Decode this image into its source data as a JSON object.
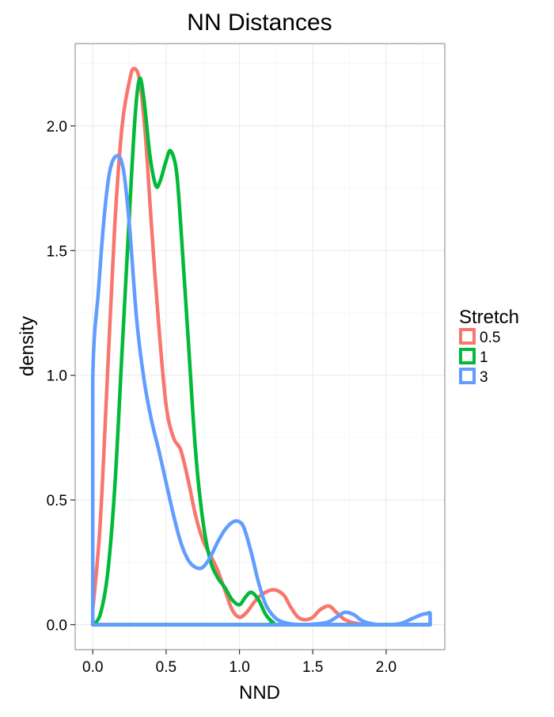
{
  "chart_data": {
    "type": "line",
    "title": "NN Distances",
    "xlabel": "NND",
    "ylabel": "density",
    "xlim": [
      -0.12,
      2.4
    ],
    "ylim": [
      -0.1,
      2.33
    ],
    "x_ticks": [
      0.0,
      0.5,
      1.0,
      1.5,
      2.0
    ],
    "x_tick_labels": [
      "0.0",
      "0.5",
      "1.0",
      "1.5",
      "2.0"
    ],
    "y_ticks": [
      0.0,
      0.5,
      1.0,
      1.5,
      2.0
    ],
    "y_tick_labels": [
      "0.0",
      "0.5",
      "1.0",
      "1.5",
      "2.0"
    ],
    "grid": true,
    "legend": {
      "title": "Stretch",
      "position": "right"
    },
    "series": [
      {
        "name": "0.5",
        "color": "#f8766d",
        "points": [
          [
            0.0,
            0.06
          ],
          [
            0.05,
            0.4
          ],
          [
            0.1,
            1.0
          ],
          [
            0.15,
            1.6
          ],
          [
            0.2,
            2.0
          ],
          [
            0.25,
            2.18
          ],
          [
            0.28,
            2.23
          ],
          [
            0.32,
            2.18
          ],
          [
            0.36,
            1.95
          ],
          [
            0.4,
            1.6
          ],
          [
            0.45,
            1.2
          ],
          [
            0.5,
            0.88
          ],
          [
            0.55,
            0.75
          ],
          [
            0.6,
            0.7
          ],
          [
            0.65,
            0.58
          ],
          [
            0.7,
            0.44
          ],
          [
            0.75,
            0.34
          ],
          [
            0.8,
            0.28
          ],
          [
            0.85,
            0.22
          ],
          [
            0.9,
            0.14
          ],
          [
            0.95,
            0.06
          ],
          [
            1.0,
            0.03
          ],
          [
            1.05,
            0.05
          ],
          [
            1.1,
            0.09
          ],
          [
            1.15,
            0.12
          ],
          [
            1.23,
            0.14
          ],
          [
            1.3,
            0.12
          ],
          [
            1.35,
            0.07
          ],
          [
            1.4,
            0.03
          ],
          [
            1.45,
            0.02
          ],
          [
            1.5,
            0.03
          ],
          [
            1.55,
            0.06
          ],
          [
            1.61,
            0.075
          ],
          [
            1.66,
            0.05
          ],
          [
            1.72,
            0.02
          ],
          [
            1.8,
            0.005
          ],
          [
            1.9,
            0.0
          ],
          [
            2.3,
            0.0
          ],
          [
            0.0,
            0.0
          ]
        ]
      },
      {
        "name": "1",
        "color": "#00ba38",
        "points": [
          [
            0.0,
            0.0
          ],
          [
            0.05,
            0.04
          ],
          [
            0.1,
            0.2
          ],
          [
            0.15,
            0.55
          ],
          [
            0.2,
            1.1
          ],
          [
            0.25,
            1.65
          ],
          [
            0.29,
            2.05
          ],
          [
            0.32,
            2.19
          ],
          [
            0.35,
            2.1
          ],
          [
            0.39,
            1.88
          ],
          [
            0.43,
            1.76
          ],
          [
            0.46,
            1.78
          ],
          [
            0.5,
            1.86
          ],
          [
            0.53,
            1.9
          ],
          [
            0.57,
            1.82
          ],
          [
            0.6,
            1.6
          ],
          [
            0.65,
            1.15
          ],
          [
            0.7,
            0.7
          ],
          [
            0.75,
            0.42
          ],
          [
            0.8,
            0.26
          ],
          [
            0.85,
            0.19
          ],
          [
            0.9,
            0.15
          ],
          [
            0.95,
            0.1
          ],
          [
            1.0,
            0.08
          ],
          [
            1.04,
            0.11
          ],
          [
            1.08,
            0.13
          ],
          [
            1.13,
            0.1
          ],
          [
            1.18,
            0.04
          ],
          [
            1.23,
            0.01
          ],
          [
            1.3,
            0.0
          ],
          [
            2.3,
            0.0
          ],
          [
            0.0,
            0.0
          ]
        ]
      },
      {
        "name": "3",
        "color": "#619cff",
        "points": [
          [
            0.0,
            0.0
          ],
          [
            0.0,
            0.98
          ],
          [
            0.04,
            1.35
          ],
          [
            0.08,
            1.65
          ],
          [
            0.12,
            1.83
          ],
          [
            0.17,
            1.88
          ],
          [
            0.21,
            1.82
          ],
          [
            0.25,
            1.6
          ],
          [
            0.3,
            1.22
          ],
          [
            0.35,
            0.98
          ],
          [
            0.4,
            0.82
          ],
          [
            0.45,
            0.7
          ],
          [
            0.5,
            0.57
          ],
          [
            0.55,
            0.44
          ],
          [
            0.6,
            0.33
          ],
          [
            0.65,
            0.26
          ],
          [
            0.7,
            0.23
          ],
          [
            0.75,
            0.23
          ],
          [
            0.8,
            0.27
          ],
          [
            0.85,
            0.33
          ],
          [
            0.9,
            0.38
          ],
          [
            0.95,
            0.41
          ],
          [
            0.99,
            0.415
          ],
          [
            1.03,
            0.39
          ],
          [
            1.08,
            0.29
          ],
          [
            1.13,
            0.17
          ],
          [
            1.18,
            0.08
          ],
          [
            1.24,
            0.03
          ],
          [
            1.3,
            0.01
          ],
          [
            1.4,
            0.0
          ],
          [
            1.5,
            0.002
          ],
          [
            1.6,
            0.01
          ],
          [
            1.66,
            0.03
          ],
          [
            1.72,
            0.05
          ],
          [
            1.78,
            0.04
          ],
          [
            1.84,
            0.015
          ],
          [
            1.92,
            0.002
          ],
          [
            2.0,
            0.0
          ],
          [
            2.1,
            0.005
          ],
          [
            2.18,
            0.025
          ],
          [
            2.24,
            0.04
          ],
          [
            2.28,
            0.045
          ],
          [
            2.3,
            0.045
          ],
          [
            2.3,
            0.0
          ],
          [
            0.0,
            0.0
          ]
        ]
      }
    ]
  }
}
